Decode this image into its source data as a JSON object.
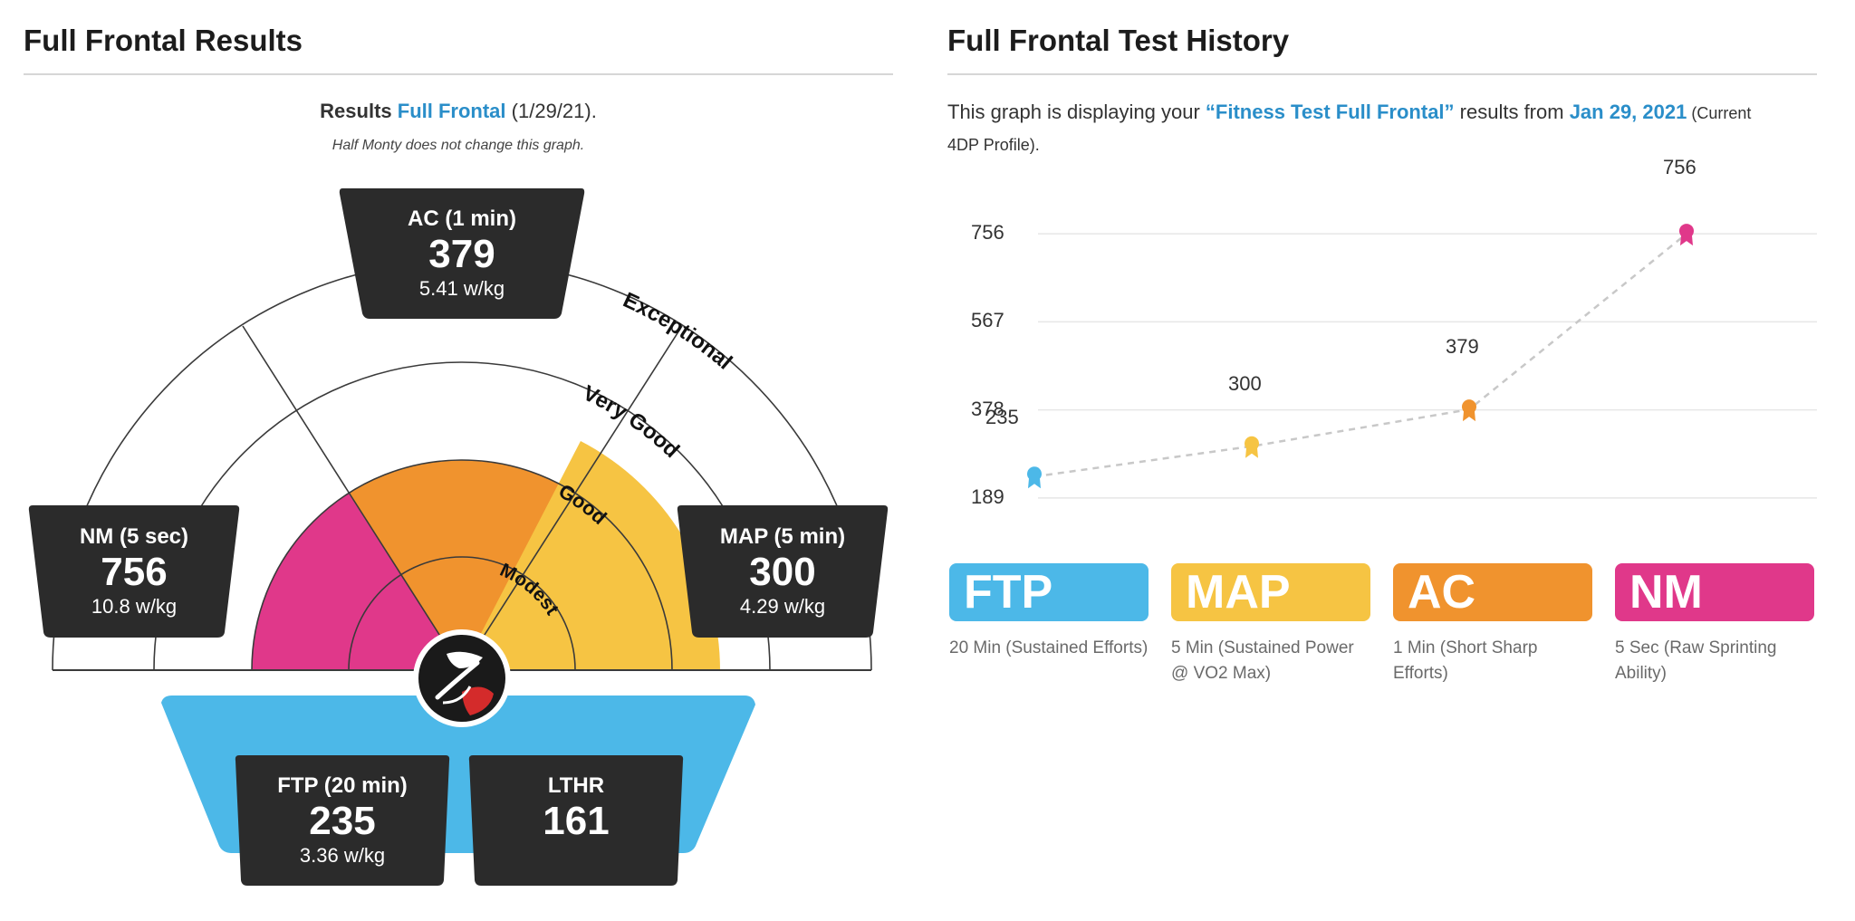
{
  "left": {
    "title": "Full Frontal Results",
    "results_prefix": "Results",
    "results_link": "Full Frontal",
    "results_date": "(1/29/21).",
    "note": "Half Monty does not change this graph.",
    "gauge_labels": {
      "exceptional": "Exceptional",
      "very_good": "Very Good",
      "good": "Good",
      "modest": "Modest"
    },
    "cards": {
      "ac": {
        "label": "AC (1 min)",
        "value": "379",
        "wkg": "5.41 w/kg"
      },
      "nm": {
        "label": "NM (5 sec)",
        "value": "756",
        "wkg": "10.8 w/kg"
      },
      "map": {
        "label": "MAP (5 min)",
        "value": "300",
        "wkg": "4.29 w/kg"
      },
      "ftp": {
        "label": "FTP (20 min)",
        "value": "235",
        "wkg": "3.36 w/kg"
      },
      "lthr": {
        "label": "LTHR",
        "value": "161"
      }
    },
    "colors": {
      "ftp": "#4cb8e8",
      "map": "#f6c443",
      "ac": "#f0932e",
      "nm": "#e0388a",
      "card": "#2b2b2b"
    }
  },
  "right": {
    "title": "Full Frontal Test History",
    "desc_1": "This graph is displaying your ",
    "desc_link": "“Fitness Test Full Frontal”",
    "desc_2": " results from ",
    "desc_date": "Jan 29, 2021",
    "desc_3": " (Current 4DP Profile).",
    "legend": [
      {
        "label": "FTP",
        "desc": "20 Min (Sustained Efforts)",
        "color": "#4cb8e8"
      },
      {
        "label": "MAP",
        "desc": "5 Min (Sustained Power @ VO2 Max)",
        "color": "#f6c443"
      },
      {
        "label": "AC",
        "desc": "1 Min (Short Sharp Efforts)",
        "color": "#f0932e"
      },
      {
        "label": "NM",
        "desc": "5 Sec (Raw Sprinting Ability)",
        "color": "#e0388a"
      }
    ]
  },
  "chart_data": {
    "type": "line",
    "categories": [
      "FTP",
      "MAP",
      "AC",
      "NM"
    ],
    "values": [
      235,
      300,
      379,
      756
    ],
    "point_labels": [
      "235",
      "300",
      "379",
      "756"
    ],
    "y_ticks": [
      189,
      378,
      567,
      756
    ],
    "ylim": [
      150,
      830
    ],
    "colors": [
      "#4cb8e8",
      "#f6c443",
      "#f0932e",
      "#e0388a"
    ],
    "grid": true
  }
}
